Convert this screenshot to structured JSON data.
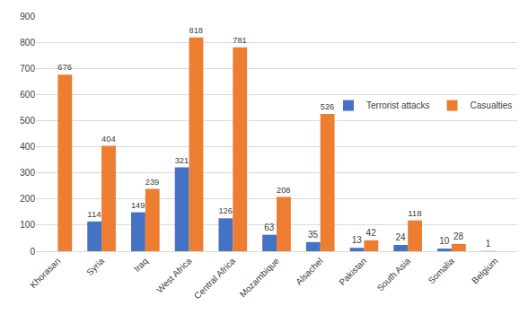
{
  "chart_data": {
    "type": "bar",
    "categories": [
      "Khorasan",
      "Syria",
      "Iraq",
      "West Africa",
      "Central Africa",
      "Mozambique",
      "Alsachel",
      "Pakistan",
      "South Asia",
      "Somalia",
      "Belgium"
    ],
    "series": [
      {
        "name": "Terrorist attacks",
        "color": "#4472c4",
        "values": [
          null,
          114,
          149,
          321,
          126,
          63,
          35,
          13,
          24,
          10,
          1
        ]
      },
      {
        "name": "Casualties",
        "color": "#ed7d31",
        "values": [
          676,
          404,
          239,
          818,
          781,
          208,
          526,
          42,
          118,
          28,
          null
        ]
      }
    ],
    "ylim": [
      0,
      900
    ],
    "yticks": [
      0,
      100,
      200,
      300,
      400,
      500,
      600,
      700,
      800,
      900
    ],
    "grid": true,
    "legend": "right",
    "data_labels": true
  }
}
